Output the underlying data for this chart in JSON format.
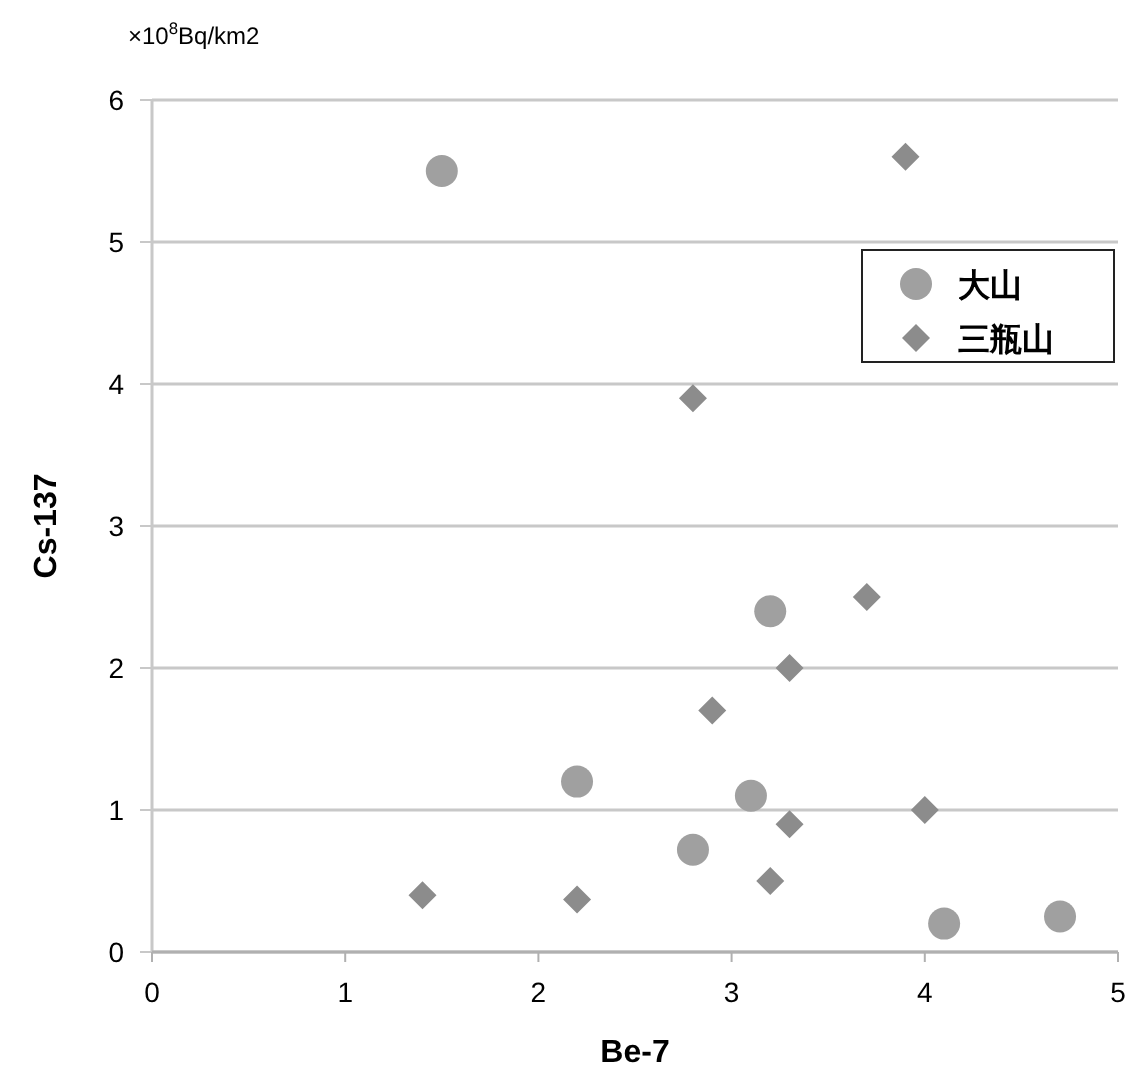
{
  "chart_data": {
    "type": "scatter",
    "xlabel": "Be-7",
    "ylabel": "Cs-137",
    "annotations": [
      "×10$^{8}$Bq/km2"
    ],
    "xlim": [
      0,
      5
    ],
    "xticks": [
      0,
      1,
      2,
      3,
      4,
      5
    ],
    "ylim": [
      0,
      6
    ],
    "yticks": [
      0,
      1,
      2,
      3,
      4,
      5,
      6
    ],
    "grid": "y",
    "legend": "top right",
    "series": [
      {
        "name": "大山",
        "color": "#a0a0a0",
        "marker": "circle",
        "x": [
          1.5,
          2.2,
          2.8,
          3.1,
          3.2,
          4.1,
          4.7
        ],
        "values": [
          5.5,
          1.2,
          0.72,
          1.1,
          2.4,
          0.2,
          0.25
        ]
      },
      {
        "name": "三瓶山",
        "color": "#8c8c8c",
        "marker": "diamond",
        "x": [
          3.9,
          2.8,
          3.7,
          3.3,
          2.9,
          4.0,
          3.3,
          3.2,
          2.2,
          1.4
        ],
        "values": [
          5.6,
          3.9,
          2.5,
          2.0,
          1.7,
          1.0,
          0.9,
          0.5,
          0.37,
          0.4
        ]
      }
    ]
  }
}
